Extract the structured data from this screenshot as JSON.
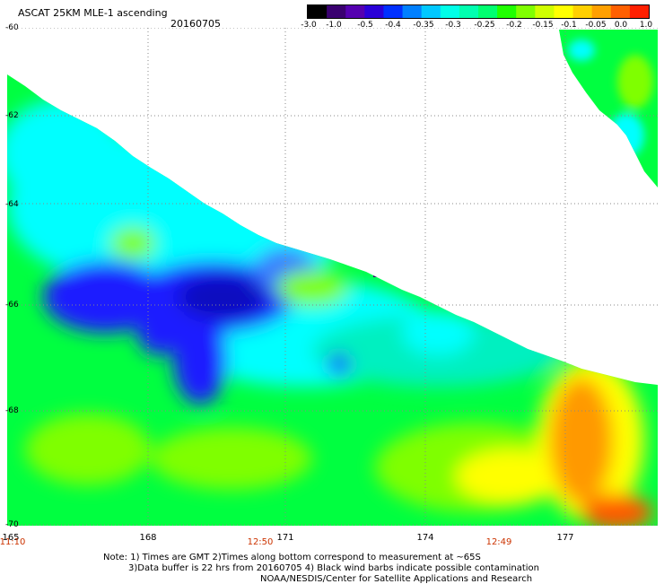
{
  "header": {
    "title": "ASCAT 25KM MLE-1 ascending",
    "date": "20160705"
  },
  "colorbar": {
    "colors": [
      "#000000",
      "#3a0070",
      "#5500b0",
      "#2a00d8",
      "#0030ff",
      "#0080ff",
      "#00c8ff",
      "#00ffe8",
      "#00ffb0",
      "#00ff70",
      "#20ff00",
      "#80ff00",
      "#d0ff00",
      "#ffff00",
      "#ffd000",
      "#ffa000",
      "#ff6000",
      "#ff2000"
    ],
    "tick_labels": [
      "-3.0",
      "-1.0",
      "-0.5",
      "-0.4",
      "-0.35",
      "-0.3",
      "-0.25",
      "-0.2",
      "-0.15",
      "-0.1",
      "-0.05",
      "0.0",
      "1.0"
    ]
  },
  "map": {
    "lat_labels": [
      "-60",
      "-62",
      "-64",
      "-66",
      "-68",
      "-70"
    ],
    "lon_labels": [
      "165",
      "168",
      "171",
      "174",
      "177"
    ],
    "time_labels": [
      "11:10",
      "12:50",
      "12:49"
    ],
    "palette": {
      "blue": "#1a1aff",
      "deep_blue": "#1010c0",
      "light_blue": "#3a7bff",
      "cyan": "#00ffff",
      "aqua": "#00f0c0",
      "green": "#00ff40",
      "lime": "#7fff00",
      "yellow": "#ffff00",
      "orange": "#ff9900",
      "red_orange": "#ff5a00",
      "purple": "#3a0070"
    }
  },
  "notes": {
    "line1": "Note: 1) Times are GMT 2)Times along bottom correspond to measurement at ~65S",
    "line2": "3)Data buffer is 22 hrs from 20160705 4) Black wind barbs indicate possible contamination",
    "line3": "NOAA/NESDIS/Center for Satellite Applications and Research"
  }
}
